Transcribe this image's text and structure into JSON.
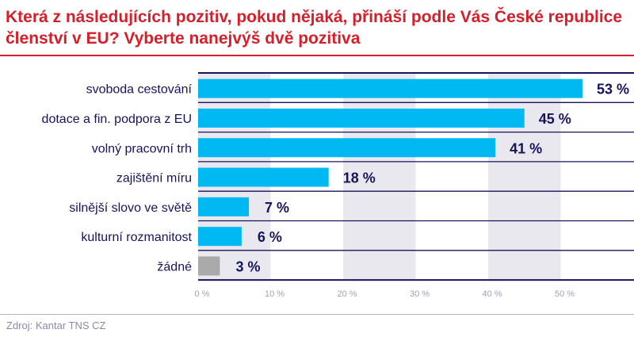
{
  "chart_data": {
    "type": "bar",
    "orientation": "horizontal",
    "title": "Která z následujících pozitiv, pokud nějaká, přináší podle Vás České republice členství v EU? Vyberte nanejvýš dvě pozitiva",
    "categories": [
      "svoboda cestování",
      "dotace a fin. podpora z EU",
      "volný pracovní trh",
      "zajištění míru",
      "silnější slovo ve světě",
      "kulturní rozmanitost",
      "žádné"
    ],
    "values": [
      53,
      45,
      41,
      18,
      7,
      6,
      3
    ],
    "value_labels": [
      "53 %",
      "45 %",
      "41 %",
      "18 %",
      "7 %",
      "6 %",
      "3 %"
    ],
    "xlim": [
      0,
      60
    ],
    "ticks": [
      0,
      10,
      20,
      30,
      40,
      50
    ],
    "tick_labels": [
      "0 %",
      "10 %",
      "20 %",
      "30 %",
      "40 %",
      "50 %"
    ],
    "colors": {
      "bar": "#00b9f2",
      "none_bar": "#aaaaaa",
      "band": "#e8e8ee",
      "label": "#16145c"
    }
  },
  "source": "Zdroj: Kantar TNS CZ"
}
